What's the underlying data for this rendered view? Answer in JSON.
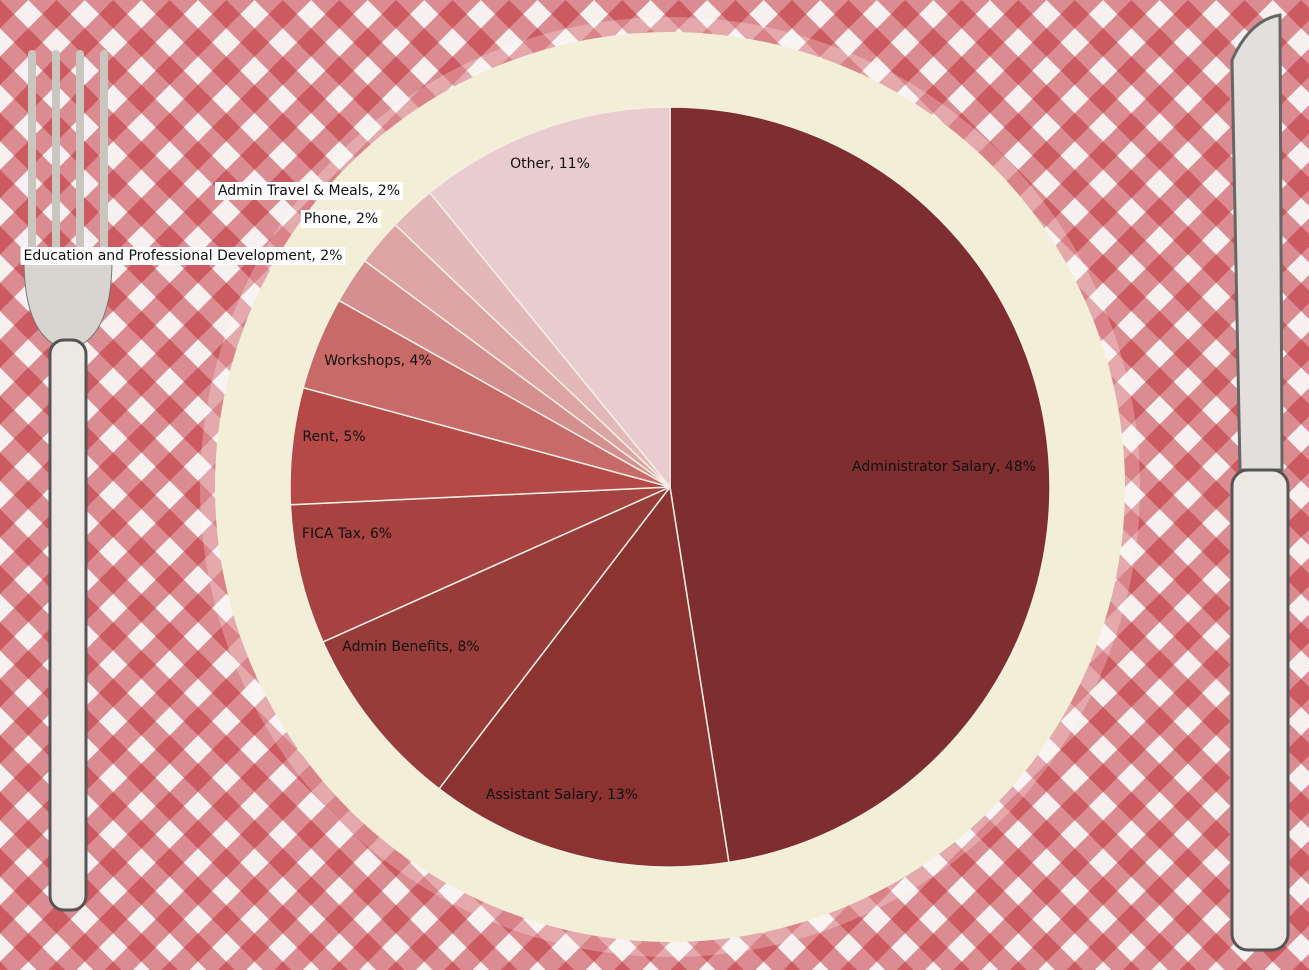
{
  "chart_data": {
    "type": "pie",
    "values": [
      48,
      13,
      8,
      6,
      5,
      4,
      2,
      2,
      2,
      11
    ],
    "value_labels": [
      "Administrator Salary, 48%",
      "Assistant Salary, 13%",
      "Admin Benefits, 8%",
      "FICA Tax, 6%",
      "Rent, 5%",
      "Workshops, 4%",
      "Education and Professional Development, 2%",
      "Phone, 2%",
      "Admin Travel & Meals, 2%",
      "Other, 11%"
    ],
    "colors": [
      "#7f2d2f",
      "#8a3332",
      "#983c3a",
      "#a64240",
      "#b44946",
      "#c76a68",
      "#d48f8e",
      "#dca5a4",
      "#e3b8b8",
      "#e9cccd"
    ]
  }
}
